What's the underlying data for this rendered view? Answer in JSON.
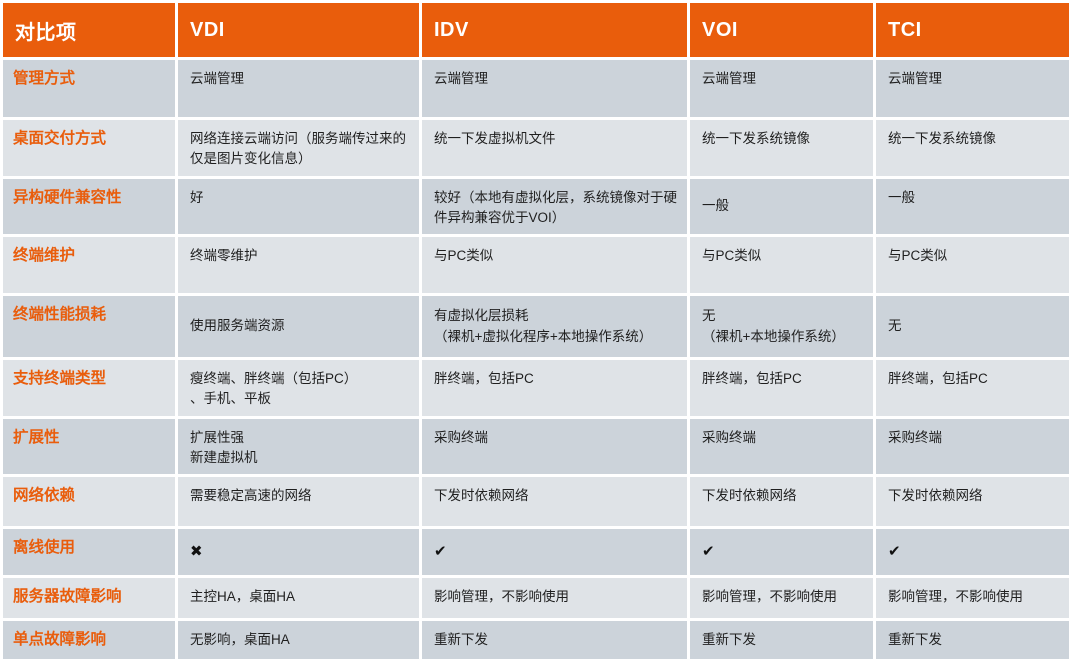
{
  "theme": {
    "header_bg": "#E95D0C",
    "label_color": "#E95D0C",
    "row_dark_bg": "#CCD3DA",
    "row_light_bg": "#DFE3E7",
    "header_text_color": "#FFFFFF",
    "cell_text_color": "#1F1F1F",
    "gap_color": "#FFFFFF"
  },
  "table": {
    "columns": [
      "对比项",
      "VDI",
      "IDV",
      "VOI",
      "TCI"
    ],
    "rows": [
      {
        "label": "管理方式",
        "cells": [
          "云端管理",
          "云端管理",
          "云端管理",
          "云端管理"
        ]
      },
      {
        "label": "桌面交付方式",
        "cells": [
          "网络连接云端访问（服务端传过来的仅是图片变化信息）",
          "统一下发虚拟机文件",
          "统一下发系统镜像",
          "统一下发系统镜像"
        ]
      },
      {
        "label": "异构硬件兼容性",
        "cells": [
          "好",
          "较好（本地有虚拟化层，系统镜像对于硬件异构兼容优于VOI）",
          {
            "text": "一般",
            "valign": "middle"
          },
          "一般"
        ]
      },
      {
        "label": "终端维护",
        "cells": [
          "终端零维护",
          "与PC类似",
          "与PC类似",
          "与PC类似"
        ]
      },
      {
        "label": "终端性能损耗",
        "cells": [
          {
            "text": "使用服务端资源",
            "valign": "middle"
          },
          {
            "text": "有虚拟化层损耗\n（裸机+虚拟化程序+本地操作系统）",
            "valign": "middle"
          },
          {
            "text": "无\n（裸机+本地操作系统）",
            "valign": "middle"
          },
          {
            "text": "无",
            "valign": "middle"
          }
        ]
      },
      {
        "label": "支持终端类型",
        "cells": [
          "瘦终端、胖终端（包括PC）\n、手机、平板",
          "胖终端，包括PC",
          "胖终端，包括PC",
          "胖终端，包括PC"
        ]
      },
      {
        "label": "扩展性",
        "cells": [
          "扩展性强\n新建虚拟机",
          "采购终端",
          "采购终端",
          "采购终端"
        ]
      },
      {
        "label": "网络依赖",
        "cells": [
          "需要稳定高速的网络",
          "下发时依赖网络",
          "下发时依赖网络",
          "下发时依赖网络"
        ]
      },
      {
        "label": "离线使用",
        "cells": [
          {
            "text": "✖",
            "valign": "middle",
            "icon": "cross-icon"
          },
          {
            "text": "✔",
            "valign": "middle",
            "icon": "check-icon"
          },
          {
            "text": "✔",
            "valign": "middle",
            "icon": "check-icon"
          },
          {
            "text": "✔",
            "valign": "middle",
            "icon": "check-icon"
          }
        ]
      },
      {
        "label": "服务器故障影响",
        "cells": [
          "主控HA，桌面HA",
          "影响管理，不影响使用",
          "影响管理，不影响使用",
          "影响管理，不影响使用"
        ]
      },
      {
        "label": "单点故障影响",
        "cells": [
          "无影响，桌面HA",
          "重新下发",
          "重新下发",
          "重新下发"
        ]
      }
    ]
  }
}
